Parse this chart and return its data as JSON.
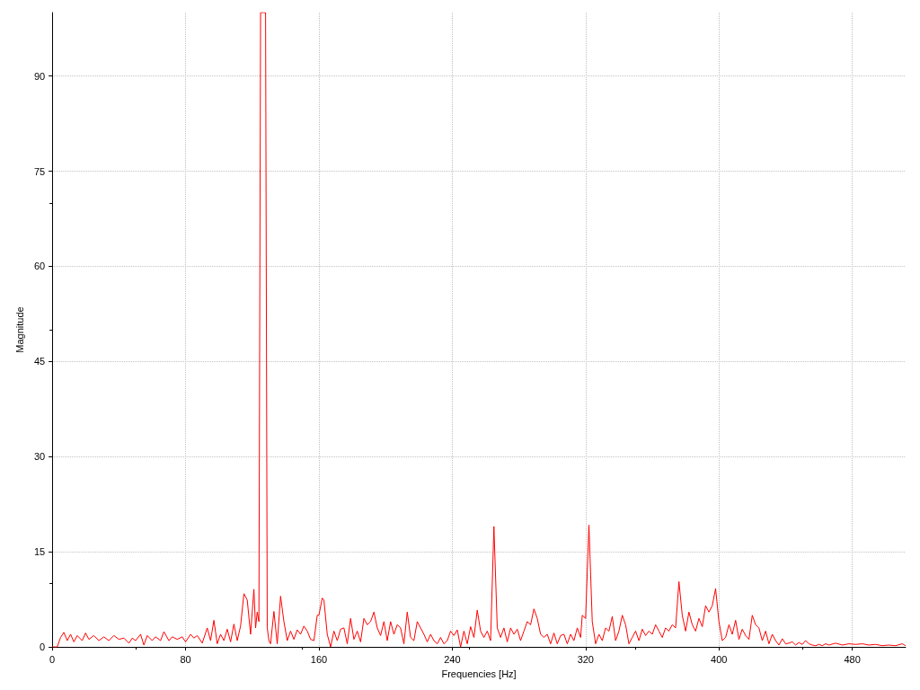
{
  "chart_data": {
    "type": "line",
    "xlabel": "Frequencies [Hz]",
    "ylabel": "Magnitude",
    "xlim": [
      0,
      512
    ],
    "ylim": [
      0,
      100
    ],
    "xticks": [
      0,
      80,
      160,
      240,
      320,
      400,
      480
    ],
    "yticks": [
      0,
      15,
      30,
      45,
      60,
      75,
      90
    ],
    "grid": true,
    "marker": "none",
    "line_style": "solid",
    "x": [
      0,
      3,
      5,
      7,
      9,
      11,
      13,
      15,
      18,
      20,
      22,
      25,
      28,
      31,
      34,
      37,
      40,
      43,
      46,
      48,
      50,
      53,
      55,
      57,
      60,
      62,
      65,
      67,
      70,
      72,
      75,
      78,
      80,
      83,
      85,
      87,
      90,
      93,
      95,
      97,
      99,
      101,
      103,
      105,
      107,
      109,
      111,
      113,
      115,
      117,
      119,
      121,
      122,
      123,
      124,
      125,
      127,
      128,
      129,
      130,
      131,
      133,
      135,
      137,
      139,
      141,
      143,
      145,
      147,
      149,
      151,
      153,
      155,
      157,
      159,
      160,
      162,
      163,
      165,
      167,
      169,
      171,
      173,
      175,
      177,
      179,
      181,
      183,
      185,
      187,
      189,
      191,
      193,
      195,
      197,
      199,
      201,
      203,
      205,
      207,
      209,
      211,
      213,
      215,
      217,
      219,
      221,
      223,
      225,
      227,
      229,
      231,
      233,
      235,
      237,
      239,
      241,
      243,
      245,
      247,
      249,
      251,
      253,
      255,
      257,
      259,
      261,
      263,
      265,
      267,
      269,
      271,
      273,
      275,
      277,
      279,
      281,
      283,
      285,
      287,
      289,
      291,
      293,
      295,
      297,
      299,
      301,
      303,
      305,
      307,
      309,
      311,
      313,
      315,
      317,
      318,
      320,
      322,
      324,
      326,
      328,
      330,
      332,
      334,
      336,
      338,
      340,
      342,
      344,
      346,
      348,
      350,
      352,
      354,
      356,
      358,
      360,
      362,
      364,
      366,
      368,
      370,
      372,
      374,
      376,
      378,
      380,
      382,
      384,
      386,
      388,
      390,
      392,
      394,
      396,
      398,
      400,
      402,
      404,
      406,
      408,
      410,
      412,
      414,
      416,
      418,
      420,
      422,
      424,
      426,
      428,
      430,
      432,
      434,
      436,
      438,
      440,
      442,
      444,
      446,
      448,
      450,
      452,
      454,
      456,
      458,
      460,
      462,
      464,
      466,
      470,
      474,
      478,
      482,
      486,
      490,
      494,
      498,
      502,
      506,
      510,
      512
    ],
    "series": [
      {
        "color": "#ff0000",
        "values": [
          0,
          0,
          1.5,
          2.3,
          1,
          2,
          0.8,
          1.8,
          1,
          2.2,
          1.2,
          1.8,
          1,
          1.6,
          1,
          1.8,
          1.2,
          1.4,
          0.6,
          1.4,
          1,
          2,
          0.3,
          1.8,
          1,
          1.6,
          1,
          2.4,
          1,
          1.6,
          1.2,
          1.6,
          0.8,
          2,
          1.4,
          1.8,
          0.6,
          3,
          1,
          4.2,
          0.5,
          2,
          1,
          2.8,
          0.8,
          3.6,
          1,
          3.3,
          8.4,
          7.4,
          2,
          9.1,
          3,
          5.5,
          4,
          100,
          100,
          100,
          3,
          1,
          0.5,
          5.6,
          0.5,
          8,
          4,
          1,
          2.5,
          1.2,
          2.7,
          2,
          3.3,
          2.5,
          1.2,
          1,
          5,
          5,
          7.7,
          7.4,
          2,
          0,
          2.5,
          1,
          2.8,
          3,
          0.5,
          4.5,
          1.2,
          2.5,
          0.8,
          4.5,
          3.5,
          4,
          5.5,
          3,
          1.8,
          4,
          1,
          4,
          2,
          3.5,
          3,
          0.5,
          5.5,
          1.5,
          1,
          4,
          3,
          2,
          0.8,
          2,
          1,
          0.5,
          1.5,
          0.5,
          1,
          2.5,
          1.8,
          2.7,
          0,
          2.5,
          0.5,
          3.2,
          1.5,
          5.8,
          2.5,
          1.5,
          2.5,
          1,
          19,
          3,
          1.5,
          3,
          0.8,
          3,
          2,
          2.8,
          1,
          2.5,
          4,
          3.5,
          6,
          4.5,
          2,
          1.5,
          2,
          0.5,
          2.2,
          0.5,
          1.8,
          2,
          0.5,
          2,
          1,
          3,
          1.5,
          5,
          4.5,
          19.2,
          4,
          0.5,
          2,
          1,
          3,
          2.5,
          4.8,
          1,
          2.5,
          5,
          3.5,
          0.5,
          1.5,
          2.5,
          1,
          2.8,
          1.8,
          2.5,
          2,
          3.5,
          2.5,
          1.5,
          3,
          2.5,
          3.5,
          3,
          10.3,
          5,
          2.5,
          5.5,
          3.5,
          2.5,
          4.5,
          3.2,
          6.5,
          5.5,
          6.5,
          9.2,
          4,
          1,
          1.5,
          3.5,
          2,
          4.2,
          1.2,
          2.8,
          1.8,
          1.2,
          5,
          3.5,
          3,
          1,
          2.5,
          0.5,
          2,
          1,
          0.3,
          1.3,
          0.5,
          0.6,
          0.8,
          0.3,
          0.7,
          0.4,
          1,
          0.5,
          0.3,
          0.2,
          0.4,
          0.2,
          0.5,
          0.3,
          0.6,
          0.3,
          0.5,
          0.4,
          0.5,
          0.3,
          0.4,
          0.2,
          0.3,
          0.2,
          0.5,
          0.2
        ]
      }
    ]
  }
}
